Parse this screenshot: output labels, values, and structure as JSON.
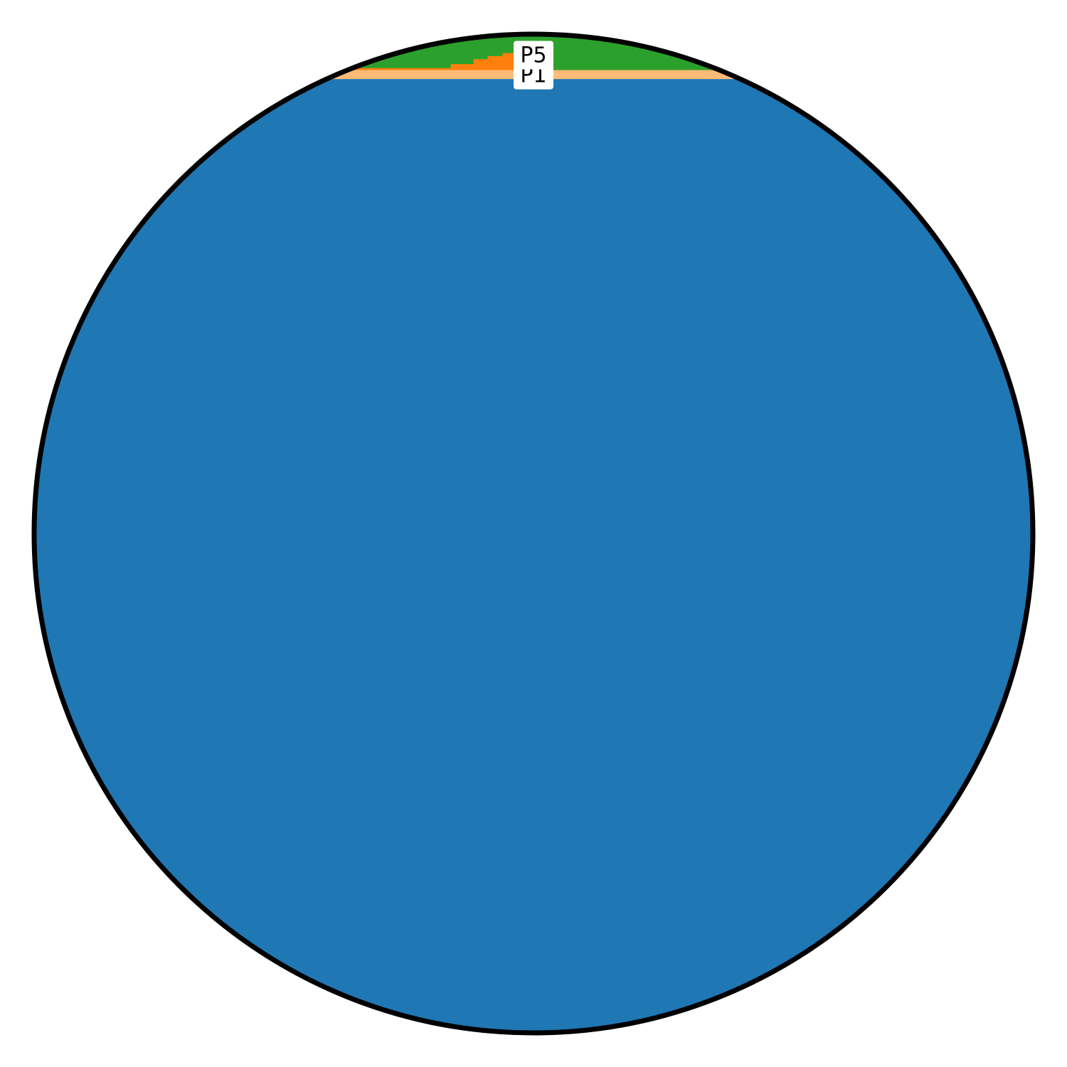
{
  "chart_data": {
    "type": "area",
    "title": "",
    "xlabel": "",
    "ylabel": "",
    "shape": "circle",
    "grid": false,
    "legend": "none",
    "layers": [
      {
        "name": "",
        "fill_fraction": 0.955,
        "color": "#1f77b4"
      },
      {
        "name": "",
        "fill_fraction": 0.964,
        "color": "#ffbb78"
      },
      {
        "name": "",
        "profile": [
          {
            "x": 0.388,
            "y": 0.966
          },
          {
            "x": 0.417,
            "y": 0.97
          },
          {
            "x": 0.44,
            "y": 0.975
          },
          {
            "x": 0.454,
            "y": 0.978
          },
          {
            "x": 0.469,
            "y": 0.981
          },
          {
            "x": 0.484,
            "y": 0.985
          },
          {
            "x": 0.5,
            "y": 0.989
          }
        ],
        "color": "#ff7f0e"
      },
      {
        "name": "",
        "fill_fraction": 1.0,
        "color": "#2ca02c"
      }
    ],
    "labels": [
      {
        "text": "P5",
        "level": 0.979
      },
      {
        "text": "P1",
        "level": 0.959
      }
    ]
  }
}
